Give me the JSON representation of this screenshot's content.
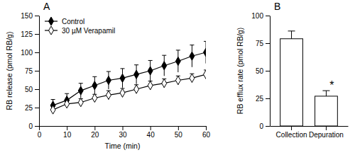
{
  "chart_data": [
    {
      "type": "line",
      "title": "A",
      "x_label": "Time (min)",
      "y_label": "RB release (pmol RB/g)",
      "x": [
        5,
        10,
        15,
        20,
        25,
        30,
        35,
        40,
        45,
        50,
        55,
        60
      ],
      "series": [
        {
          "name": "Control",
          "color": "#000000",
          "marker": "diamond",
          "values": [
            28,
            35,
            48,
            55,
            62,
            65,
            70,
            75,
            82,
            88,
            95,
            100
          ],
          "errors": [
            8,
            9,
            10,
            12,
            12,
            13,
            13,
            14,
            14,
            15,
            15,
            15
          ]
        },
        {
          "name": "30 µM Verapamil",
          "color": "#000000",
          "marker": "open_diamond",
          "values": [
            22,
            30,
            32,
            38,
            42,
            45,
            50,
            55,
            58,
            62,
            65,
            70
          ],
          "errors": [
            5,
            5,
            5,
            5,
            6,
            6,
            6,
            6,
            6,
            6,
            6,
            6
          ]
        }
      ],
      "xlim": [
        0,
        60
      ],
      "xticks": [
        0,
        10,
        20,
        30,
        40,
        50,
        60
      ],
      "ylim": [
        0,
        150
      ],
      "yticks": [
        0,
        25,
        50,
        75,
        100,
        125,
        150
      ],
      "grid": false,
      "legend": "upper left"
    },
    {
      "type": "bar",
      "title": "B",
      "y_label": "RB efflux rate (pmol RB/g)",
      "categories": [
        "Collection",
        "Depuration"
      ],
      "values": [
        79,
        27
      ],
      "errors": [
        7,
        5
      ],
      "color": "#ffffff",
      "ylim": [
        0,
        100
      ],
      "yticks": [
        0,
        25,
        50,
        75,
        100
      ],
      "grid": false,
      "annotations": [
        {
          "text": "*",
          "category": "Depuration"
        }
      ]
    }
  ]
}
